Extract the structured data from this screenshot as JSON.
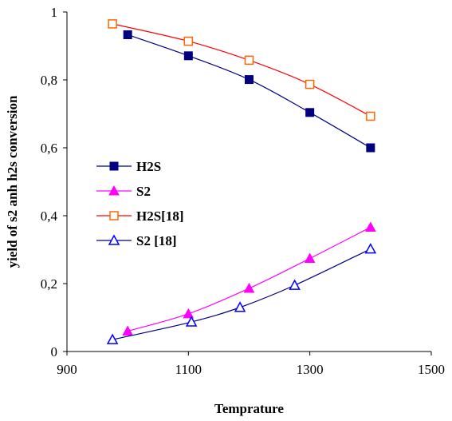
{
  "chart_data": {
    "type": "line",
    "title": "",
    "xlabel": "Temprature",
    "ylabel": "yield of s2 anh h2s conversion",
    "xlim": [
      900,
      1500
    ],
    "ylim": [
      0,
      1
    ],
    "xticks": [
      900,
      1100,
      1300,
      1500
    ],
    "yticks": [
      0,
      0.2,
      0.4,
      0.6,
      0.8,
      1
    ],
    "x_tick_labels": [
      "900",
      "1100",
      "1300",
      "1500"
    ],
    "y_tick_labels": [
      "0",
      "0,2",
      "0,4",
      "0,6",
      "0,8",
      "1"
    ],
    "grid": false,
    "legend_position": "left-center",
    "series": [
      {
        "name": "H2S",
        "marker": "filled-square",
        "color": "#000080",
        "marker_color": "#000080",
        "x": [
          1000,
          1100,
          1200,
          1300,
          1400
        ],
        "y": [
          0.933,
          0.871,
          0.801,
          0.704,
          0.6
        ]
      },
      {
        "name": "S2",
        "marker": "filled-triangle",
        "color": "#ff00ff",
        "marker_color": "#ff00ff",
        "x": [
          1000,
          1100,
          1200,
          1300,
          1400
        ],
        "y": [
          0.06,
          0.111,
          0.186,
          0.274,
          0.366
        ]
      },
      {
        "name": "H2S[18]",
        "marker": "open-square",
        "color": "#ff0000",
        "marker_color": "#ff6600",
        "x": [
          975,
          1100,
          1200,
          1300,
          1400
        ],
        "y": [
          0.965,
          0.914,
          0.858,
          0.787,
          0.693
        ]
      },
      {
        "name": "S2 [18]",
        "marker": "open-triangle",
        "color": "#000080",
        "marker_color": "#0000ff",
        "x": [
          975,
          1105,
          1185,
          1275,
          1400
        ],
        "y": [
          0.035,
          0.087,
          0.13,
          0.195,
          0.302
        ]
      }
    ]
  }
}
